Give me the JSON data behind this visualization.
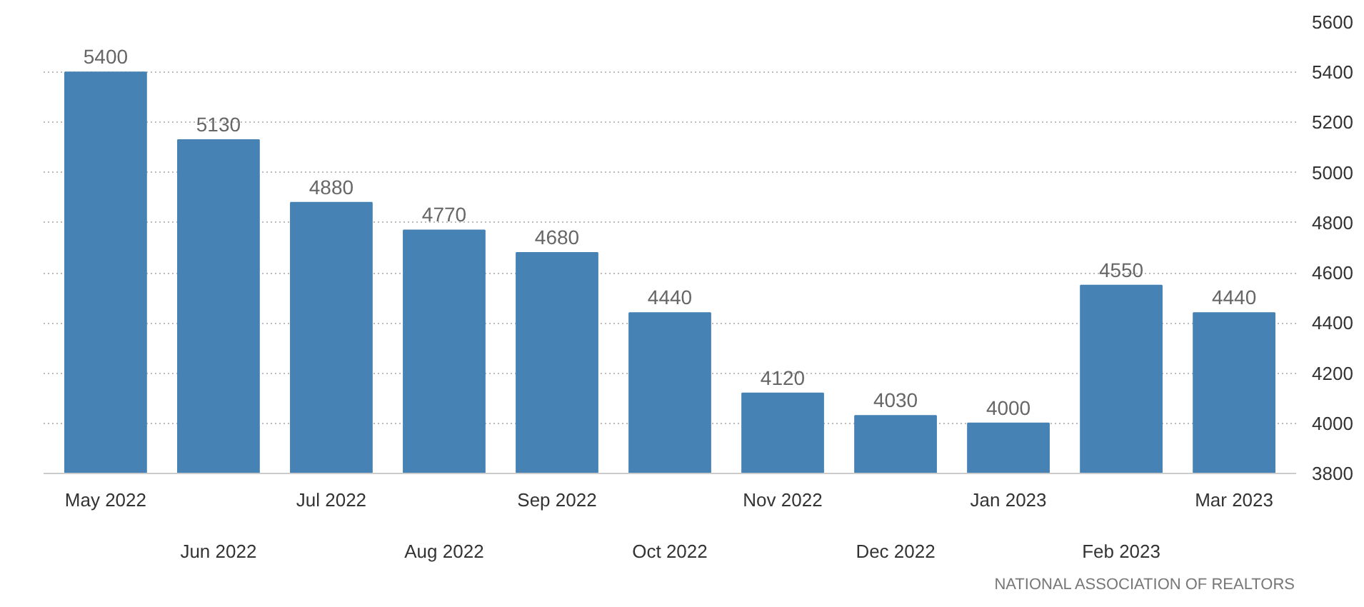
{
  "chart_data": {
    "type": "bar",
    "categories": [
      "May 2022",
      "Jun 2022",
      "Jul 2022",
      "Aug 2022",
      "Sep 2022",
      "Oct 2022",
      "Nov 2022",
      "Dec 2022",
      "Jan 2023",
      "Feb 2023",
      "Mar 2023"
    ],
    "values": [
      5400,
      5130,
      4880,
      4770,
      4680,
      4440,
      4120,
      4030,
      4000,
      4550,
      4440
    ],
    "color": "#4682b4",
    "ylim": [
      3800,
      5600
    ],
    "yticks": [
      3800,
      4000,
      4200,
      4400,
      4600,
      4800,
      5000,
      5200,
      5400,
      5600
    ],
    "grid": "y",
    "data_labels": true,
    "annotations": [
      "NATIONAL ASSOCIATION OF REALTORS"
    ]
  }
}
